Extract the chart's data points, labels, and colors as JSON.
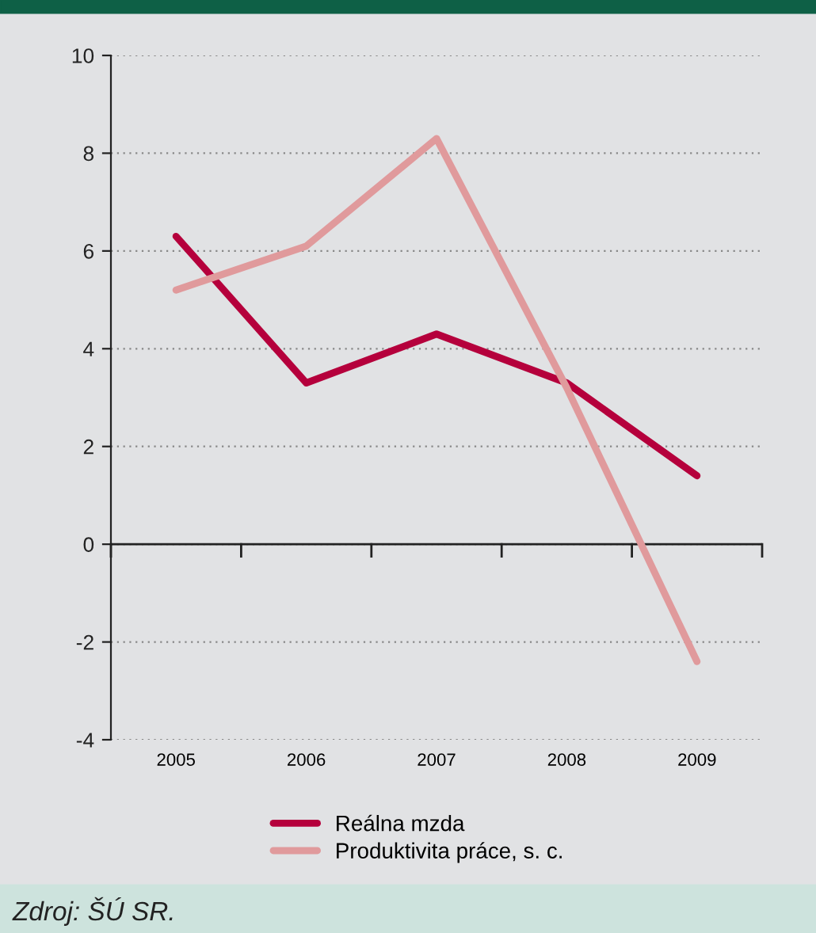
{
  "chart_data": {
    "type": "line",
    "categories": [
      "2005",
      "2006",
      "2007",
      "2008",
      "2009"
    ],
    "series": [
      {
        "name": "Reálna mzda",
        "color": "#b5003c",
        "values": [
          6.3,
          3.3,
          4.3,
          3.3,
          1.4
        ]
      },
      {
        "name": "Produktivita práce, s. c.",
        "color": "#e09a9c",
        "values": [
          5.2,
          6.1,
          8.3,
          3.2,
          -2.4
        ]
      }
    ],
    "ylim": [
      -4,
      10
    ],
    "yticks": [
      -4,
      -2,
      0,
      2,
      4,
      6,
      8,
      10
    ],
    "grid": "y",
    "legend": "bottom",
    "marker": "none",
    "line_style": "solid",
    "annotations": [
      "Zdroj: ŠÚ SR."
    ]
  }
}
